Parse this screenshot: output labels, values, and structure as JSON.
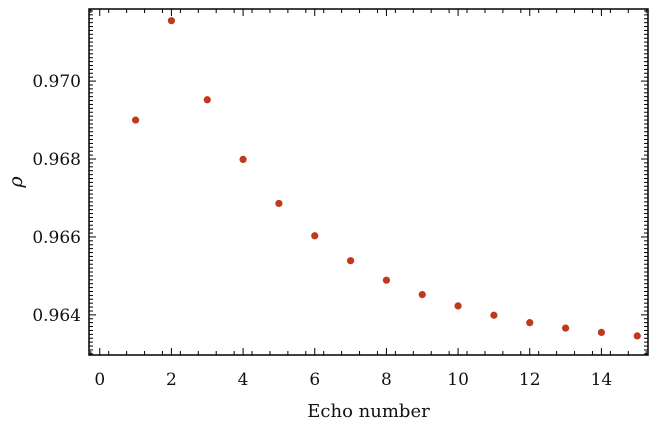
{
  "chart_data": {
    "type": "scatter",
    "title": "",
    "xlabel": "Echo number",
    "ylabel": "ρ",
    "xlim": [
      -0.3,
      15.3
    ],
    "ylim": [
      0.96297,
      0.97185
    ],
    "xticks": [
      0,
      2,
      4,
      6,
      8,
      10,
      12,
      14
    ],
    "xtick_labels": [
      "0",
      "2",
      "4",
      "6",
      "8",
      "10",
      "12",
      "14"
    ],
    "yticks": [
      0.964,
      0.966,
      0.968,
      0.97
    ],
    "ytick_labels": [
      "0.964",
      "0.966",
      "0.968",
      "0.970"
    ],
    "grid": false,
    "marker_color": "#c0391b",
    "series": [
      {
        "name": "",
        "x": [
          1,
          2,
          3,
          4,
          5,
          6,
          7,
          8,
          9,
          10,
          11,
          12,
          13,
          14,
          15
        ],
        "y": [
          0.969,
          0.97155,
          0.96952,
          0.96799,
          0.96686,
          0.96603,
          0.96539,
          0.96489,
          0.96452,
          0.96423,
          0.96399,
          0.9638,
          0.96366,
          0.96355,
          0.96346
        ]
      }
    ]
  }
}
